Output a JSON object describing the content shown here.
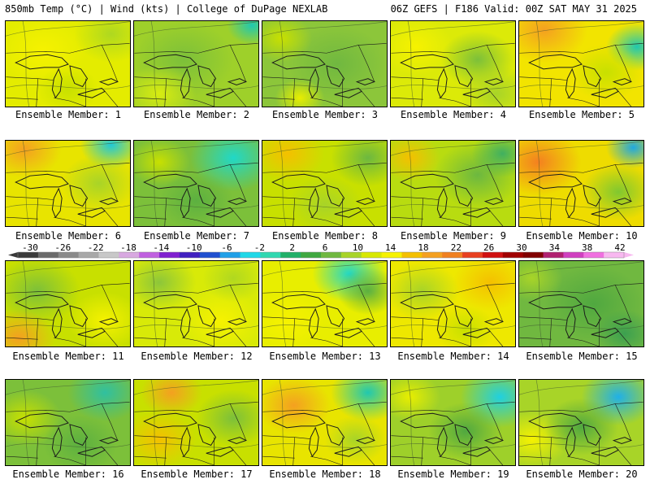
{
  "header": {
    "left": "850mb Temp (°C) | Wind (kts) | College of DuPage NEXLAB",
    "right": "06Z GEFS | F186 Valid: 00Z SAT MAY 31 2025"
  },
  "panels": [
    {
      "label": "Ensemble Member: 1",
      "tint": "#e4ec00",
      "blobs": [
        [
          "#f6f200",
          0.3,
          0.35,
          0.35
        ],
        [
          "#aed820",
          0.85,
          0.15,
          0.3
        ],
        [
          "#c8e000",
          0.5,
          0.8,
          0.25
        ]
      ]
    },
    {
      "label": "Ensemble Member: 2",
      "tint": "#9ed02a",
      "blobs": [
        [
          "#7cc03a",
          0.4,
          0.45,
          0.4
        ],
        [
          "#20c8b0",
          0.95,
          0.05,
          0.2
        ],
        [
          "#d8ec10",
          0.2,
          0.85,
          0.3
        ]
      ]
    },
    {
      "label": "Ensemble Member: 3",
      "tint": "#8cc63a",
      "blobs": [
        [
          "#70b840",
          0.6,
          0.5,
          0.4
        ],
        [
          "#c8e000",
          0.15,
          0.2,
          0.25
        ],
        [
          "#e8ee00",
          0.3,
          0.9,
          0.2
        ]
      ]
    },
    {
      "label": "Ensemble Member: 4",
      "tint": "#dcea08",
      "blobs": [
        [
          "#f6f200",
          0.2,
          0.3,
          0.3
        ],
        [
          "#7cc03a",
          0.7,
          0.45,
          0.3
        ],
        [
          "#a8d428",
          0.85,
          0.85,
          0.3
        ]
      ]
    },
    {
      "label": "Ensemble Member: 5",
      "tint": "#f2e400",
      "blobs": [
        [
          "#f4a020",
          0.2,
          0.1,
          0.35
        ],
        [
          "#20c8b0",
          0.95,
          0.3,
          0.25
        ],
        [
          "#c8e000",
          0.7,
          0.6,
          0.3
        ]
      ]
    },
    {
      "label": "Ensemble Member: 6",
      "tint": "#e8e400",
      "blobs": [
        [
          "#f4a020",
          0.15,
          0.1,
          0.3
        ],
        [
          "#20c8d8",
          0.85,
          0.05,
          0.25
        ],
        [
          "#a8d428",
          0.75,
          0.5,
          0.3
        ]
      ]
    },
    {
      "label": "Ensemble Member: 7",
      "tint": "#7cc03a",
      "blobs": [
        [
          "#20d8c8",
          0.8,
          0.2,
          0.35
        ],
        [
          "#c8e000",
          0.2,
          0.25,
          0.25
        ],
        [
          "#5cb040",
          0.5,
          0.7,
          0.3
        ]
      ]
    },
    {
      "label": "Ensemble Member: 8",
      "tint": "#c8e000",
      "blobs": [
        [
          "#f4c000",
          0.2,
          0.15,
          0.3
        ],
        [
          "#6cb840",
          0.85,
          0.2,
          0.3
        ],
        [
          "#a8d428",
          0.5,
          0.75,
          0.3
        ]
      ]
    },
    {
      "label": "Ensemble Member: 9",
      "tint": "#b8dc10",
      "blobs": [
        [
          "#f4c000",
          0.15,
          0.2,
          0.25
        ],
        [
          "#6cb840",
          0.7,
          0.4,
          0.35
        ],
        [
          "#40b060",
          0.9,
          0.15,
          0.25
        ]
      ]
    },
    {
      "label": "Ensemble Member: 10",
      "tint": "#eedc00",
      "blobs": [
        [
          "#f48020",
          0.15,
          0.25,
          0.35
        ],
        [
          "#20a8e0",
          0.92,
          0.08,
          0.22
        ],
        [
          "#80c830",
          0.8,
          0.6,
          0.3
        ]
      ]
    },
    {
      "label": "Ensemble Member: 11",
      "tint": "#c8e000",
      "blobs": [
        [
          "#7cc03a",
          0.25,
          0.35,
          0.35
        ],
        [
          "#f4a020",
          0.1,
          0.9,
          0.3
        ],
        [
          "#f6f200",
          0.8,
          0.7,
          0.3
        ]
      ]
    },
    {
      "label": "Ensemble Member: 12",
      "tint": "#d8ea08",
      "blobs": [
        [
          "#f6f200",
          0.7,
          0.7,
          0.35
        ],
        [
          "#8cc63a",
          0.2,
          0.25,
          0.3
        ],
        [
          "#b0d820",
          0.8,
          0.2,
          0.25
        ]
      ]
    },
    {
      "label": "Ensemble Member: 13",
      "tint": "#e8ee00",
      "blobs": [
        [
          "#20d8c8",
          0.7,
          0.15,
          0.3
        ],
        [
          "#5cb040",
          0.85,
          0.35,
          0.25
        ],
        [
          "#f6f200",
          0.2,
          0.7,
          0.3
        ]
      ]
    },
    {
      "label": "Ensemble Member: 14",
      "tint": "#eee800",
      "blobs": [
        [
          "#f4c000",
          0.8,
          0.25,
          0.3
        ],
        [
          "#a8d428",
          0.25,
          0.35,
          0.3
        ],
        [
          "#c8e000",
          0.6,
          0.8,
          0.25
        ]
      ]
    },
    {
      "label": "Ensemble Member: 15",
      "tint": "#70b840",
      "blobs": [
        [
          "#50a840",
          0.6,
          0.5,
          0.4
        ],
        [
          "#a8d428",
          0.1,
          0.2,
          0.25
        ],
        [
          "#3ca050",
          0.85,
          0.85,
          0.25
        ]
      ]
    },
    {
      "label": "Ensemble Member: 16",
      "tint": "#7cc03a",
      "blobs": [
        [
          "#30c0a0",
          0.8,
          0.15,
          0.3
        ],
        [
          "#c8e000",
          0.15,
          0.45,
          0.3
        ],
        [
          "#5cb040",
          0.6,
          0.75,
          0.3
        ]
      ]
    },
    {
      "label": "Ensemble Member: 17",
      "tint": "#c8e000",
      "blobs": [
        [
          "#f4a020",
          0.3,
          0.15,
          0.25
        ],
        [
          "#f4c000",
          0.2,
          0.7,
          0.3
        ],
        [
          "#7cc03a",
          0.8,
          0.45,
          0.3
        ]
      ]
    },
    {
      "label": "Ensemble Member: 18",
      "tint": "#e8e400",
      "blobs": [
        [
          "#f4a020",
          0.25,
          0.3,
          0.3
        ],
        [
          "#20c8b0",
          0.85,
          0.15,
          0.3
        ],
        [
          "#a8d428",
          0.75,
          0.7,
          0.25
        ]
      ]
    },
    {
      "label": "Ensemble Member: 19",
      "tint": "#9ed02a",
      "blobs": [
        [
          "#20d0e0",
          0.88,
          0.2,
          0.32
        ],
        [
          "#e8ee00",
          0.15,
          0.2,
          0.25
        ],
        [
          "#50a840",
          0.6,
          0.6,
          0.3
        ]
      ]
    },
    {
      "label": "Ensemble Member: 20",
      "tint": "#a8d428",
      "blobs": [
        [
          "#20b0e8",
          0.8,
          0.2,
          0.3
        ],
        [
          "#f6f200",
          0.1,
          0.7,
          0.3
        ],
        [
          "#50a840",
          0.5,
          0.55,
          0.3
        ]
      ]
    }
  ],
  "colorbar": {
    "ticks": [
      "-30",
      "-26",
      "-22",
      "-18",
      "-14",
      "-10",
      "-6",
      "-2",
      "2",
      "6",
      "10",
      "14",
      "18",
      "22",
      "26",
      "30",
      "34",
      "38",
      "42"
    ],
    "colors": [
      "#3a3a3a",
      "#6a6a6a",
      "#8a8a8a",
      "#a8a8a8",
      "#c8c8c8",
      "#d8a8e0",
      "#c060e0",
      "#8020d0",
      "#4020c0",
      "#2050d0",
      "#20a0e8",
      "#20d8e8",
      "#30d8b0",
      "#20b068",
      "#40a840",
      "#70b840",
      "#a8d428",
      "#d8e800",
      "#f6f200",
      "#f4c000",
      "#f4a020",
      "#f08020",
      "#e84020",
      "#d01010",
      "#a00000",
      "#800000",
      "#b02070",
      "#d040c0",
      "#f070e0",
      "#f8b8f0"
    ]
  }
}
